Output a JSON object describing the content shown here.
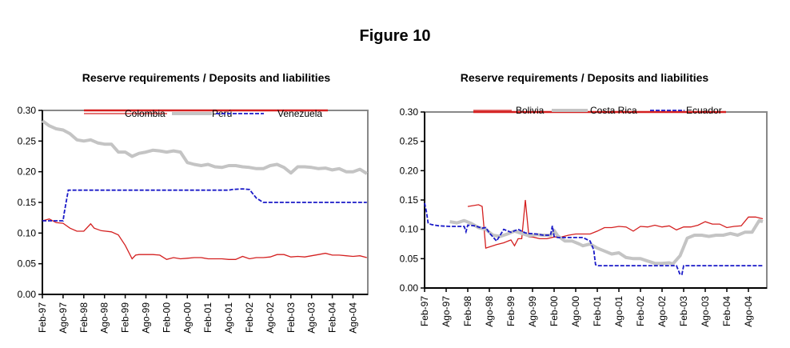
{
  "figure_title": "Figure 10",
  "colors": {
    "red": "#d42020",
    "gray": "#c4c4c4",
    "blue": "#1a1ac8"
  },
  "chart_data": [
    {
      "type": "line",
      "title": "Reserve requirements / Deposits and liabilities",
      "xlabel": "",
      "ylabel": "",
      "ylim": [
        0,
        0.3
      ],
      "yticks": [
        "0.00",
        "0.05",
        "0.10",
        "0.15",
        "0.20",
        "0.25",
        "0.30"
      ],
      "xticks": [
        "Feb-97",
        "Ago-97",
        "Feb-98",
        "Ago-98",
        "Feb-99",
        "Ago-99",
        "Feb-00",
        "Ago-00",
        "Feb-01",
        "Ago-01",
        "Feb-02",
        "Ago-02",
        "Feb-03",
        "Ago-03",
        "Feb-04",
        "Ago-04"
      ],
      "x_unit": "months since Feb-97",
      "xlim": [
        0,
        94
      ],
      "legend": "top",
      "series": [
        {
          "name": "Colombia",
          "style": "red-thin",
          "x": [
            0,
            2,
            4,
            6,
            8,
            10,
            12,
            14,
            15,
            17,
            20,
            22,
            24,
            26,
            27,
            28,
            30,
            32,
            34,
            36,
            38,
            40,
            42,
            44,
            46,
            48,
            50,
            52,
            54,
            56,
            58,
            60,
            62,
            64,
            66,
            68,
            70,
            72,
            74,
            76,
            78,
            80,
            82,
            84,
            86,
            88,
            90,
            92,
            94
          ],
          "y": [
            0.12,
            0.123,
            0.117,
            0.116,
            0.108,
            0.103,
            0.103,
            0.115,
            0.108,
            0.104,
            0.102,
            0.097,
            0.08,
            0.058,
            0.064,
            0.065,
            0.065,
            0.065,
            0.064,
            0.057,
            0.06,
            0.058,
            0.059,
            0.06,
            0.06,
            0.058,
            0.058,
            0.058,
            0.057,
            0.057,
            0.062,
            0.058,
            0.06,
            0.06,
            0.061,
            0.065,
            0.065,
            0.061,
            0.062,
            0.061,
            0.063,
            0.065,
            0.067,
            0.064,
            0.064,
            0.063,
            0.062,
            0.063,
            0.06
          ]
        },
        {
          "name": "Perú",
          "style": "gray-thick",
          "x": [
            0,
            2,
            4,
            6,
            8,
            10,
            12,
            14,
            16,
            18,
            20,
            22,
            24,
            26,
            28,
            30,
            32,
            34,
            36,
            38,
            40,
            42,
            44,
            46,
            48,
            50,
            52,
            54,
            56,
            58,
            60,
            62,
            64,
            66,
            68,
            70,
            72,
            74,
            76,
            78,
            80,
            82,
            84,
            86,
            88,
            90,
            92,
            94
          ],
          "y": [
            0.283,
            0.275,
            0.27,
            0.268,
            0.262,
            0.252,
            0.25,
            0.252,
            0.247,
            0.245,
            0.245,
            0.232,
            0.232,
            0.225,
            0.23,
            0.232,
            0.235,
            0.234,
            0.232,
            0.234,
            0.232,
            0.215,
            0.212,
            0.21,
            0.212,
            0.208,
            0.207,
            0.21,
            0.21,
            0.208,
            0.207,
            0.205,
            0.205,
            0.21,
            0.212,
            0.207,
            0.198,
            0.208,
            0.208,
            0.207,
            0.205,
            0.206,
            0.203,
            0.205,
            0.2,
            0.2,
            0.204,
            0.197
          ]
        },
        {
          "name": "Venezuela",
          "style": "blue-dashed",
          "x": [
            0,
            6,
            6.3,
            7.5,
            20,
            40,
            54,
            55,
            58,
            60,
            62,
            64,
            94
          ],
          "y": [
            0.12,
            0.12,
            0.132,
            0.17,
            0.17,
            0.17,
            0.17,
            0.171,
            0.172,
            0.171,
            0.157,
            0.15,
            0.15
          ]
        }
      ]
    },
    {
      "type": "line",
      "title": "Reserve requirements / Deposits and liabilities",
      "xlabel": "",
      "ylabel": "",
      "ylim": [
        0,
        0.3
      ],
      "yticks": [
        "0.00",
        "0.05",
        "0.10",
        "0.15",
        "0.20",
        "0.25",
        "0.30"
      ],
      "xticks": [
        "Feb-97",
        "Ago-97",
        "Feb-98",
        "Ago-98",
        "Feb-99",
        "Ago-99",
        "Feb-00",
        "Ago-00",
        "Feb-01",
        "Ago-01",
        "Feb-02",
        "Ago-02",
        "Feb-03",
        "Ago-03",
        "Feb-04",
        "Ago-04"
      ],
      "x_unit": "months since Feb-97",
      "xlim": [
        0,
        94
      ],
      "legend": "top",
      "series": [
        {
          "name": "Bolivia",
          "style": "red-thin",
          "x": [
            12,
            15,
            16,
            17,
            20,
            22,
            24,
            25,
            26,
            27,
            28,
            29,
            30,
            32,
            34,
            36,
            38,
            40,
            42,
            44,
            46,
            48,
            50,
            52,
            54,
            56,
            58,
            60,
            62,
            64,
            66,
            68,
            70,
            72,
            74,
            76,
            78,
            80,
            82,
            84,
            86,
            88,
            90,
            92,
            94
          ],
          "y": [
            0.139,
            0.142,
            0.139,
            0.068,
            0.074,
            0.077,
            0.082,
            0.072,
            0.084,
            0.084,
            0.15,
            0.087,
            0.087,
            0.084,
            0.084,
            0.087,
            0.087,
            0.09,
            0.092,
            0.092,
            0.092,
            0.097,
            0.103,
            0.103,
            0.105,
            0.104,
            0.097,
            0.105,
            0.104,
            0.107,
            0.104,
            0.106,
            0.099,
            0.104,
            0.104,
            0.107,
            0.113,
            0.109,
            0.109,
            0.103,
            0.105,
            0.106,
            0.121,
            0.121,
            0.118
          ]
        },
        {
          "name": "Costa Rica",
          "style": "gray-thick",
          "x": [
            7,
            9,
            11,
            13,
            15,
            17,
            19,
            21,
            23,
            25,
            27,
            29,
            31,
            33,
            35,
            36,
            37,
            39,
            41,
            43,
            44,
            46,
            48,
            50,
            52,
            54,
            56,
            58,
            60,
            62,
            64,
            66,
            68,
            69,
            71,
            73,
            75,
            77,
            79,
            81,
            83,
            85,
            87,
            89,
            91,
            93,
            94
          ],
          "y": [
            0.113,
            0.111,
            0.115,
            0.11,
            0.103,
            0.1,
            0.09,
            0.088,
            0.092,
            0.097,
            0.093,
            0.089,
            0.091,
            0.09,
            0.09,
            0.098,
            0.089,
            0.08,
            0.08,
            0.075,
            0.072,
            0.075,
            0.068,
            0.063,
            0.058,
            0.06,
            0.052,
            0.05,
            0.05,
            0.046,
            0.042,
            0.042,
            0.043,
            0.041,
            0.055,
            0.085,
            0.09,
            0.09,
            0.088,
            0.09,
            0.09,
            0.093,
            0.09,
            0.095,
            0.095,
            0.115,
            0.113
          ]
        },
        {
          "name": "Ecuador",
          "style": "blue-dashed",
          "x": [
            0,
            0.5,
            1,
            2,
            4,
            7,
            11,
            11.5,
            12,
            14,
            16,
            17,
            18,
            20,
            21,
            22,
            24,
            26,
            28,
            29,
            31,
            33,
            35,
            35.5,
            36,
            37,
            39,
            44,
            46,
            47,
            47.5,
            48,
            52,
            60,
            68,
            70,
            71,
            71.5,
            72,
            94
          ],
          "y": [
            0.145,
            0.13,
            0.11,
            0.108,
            0.106,
            0.105,
            0.105,
            0.096,
            0.107,
            0.106,
            0.102,
            0.103,
            0.094,
            0.08,
            0.09,
            0.1,
            0.095,
            0.1,
            0.094,
            0.093,
            0.092,
            0.09,
            0.09,
            0.106,
            0.088,
            0.086,
            0.086,
            0.086,
            0.08,
            0.065,
            0.04,
            0.038,
            0.038,
            0.038,
            0.038,
            0.038,
            0.023,
            0.023,
            0.038,
            0.038
          ]
        }
      ]
    }
  ]
}
